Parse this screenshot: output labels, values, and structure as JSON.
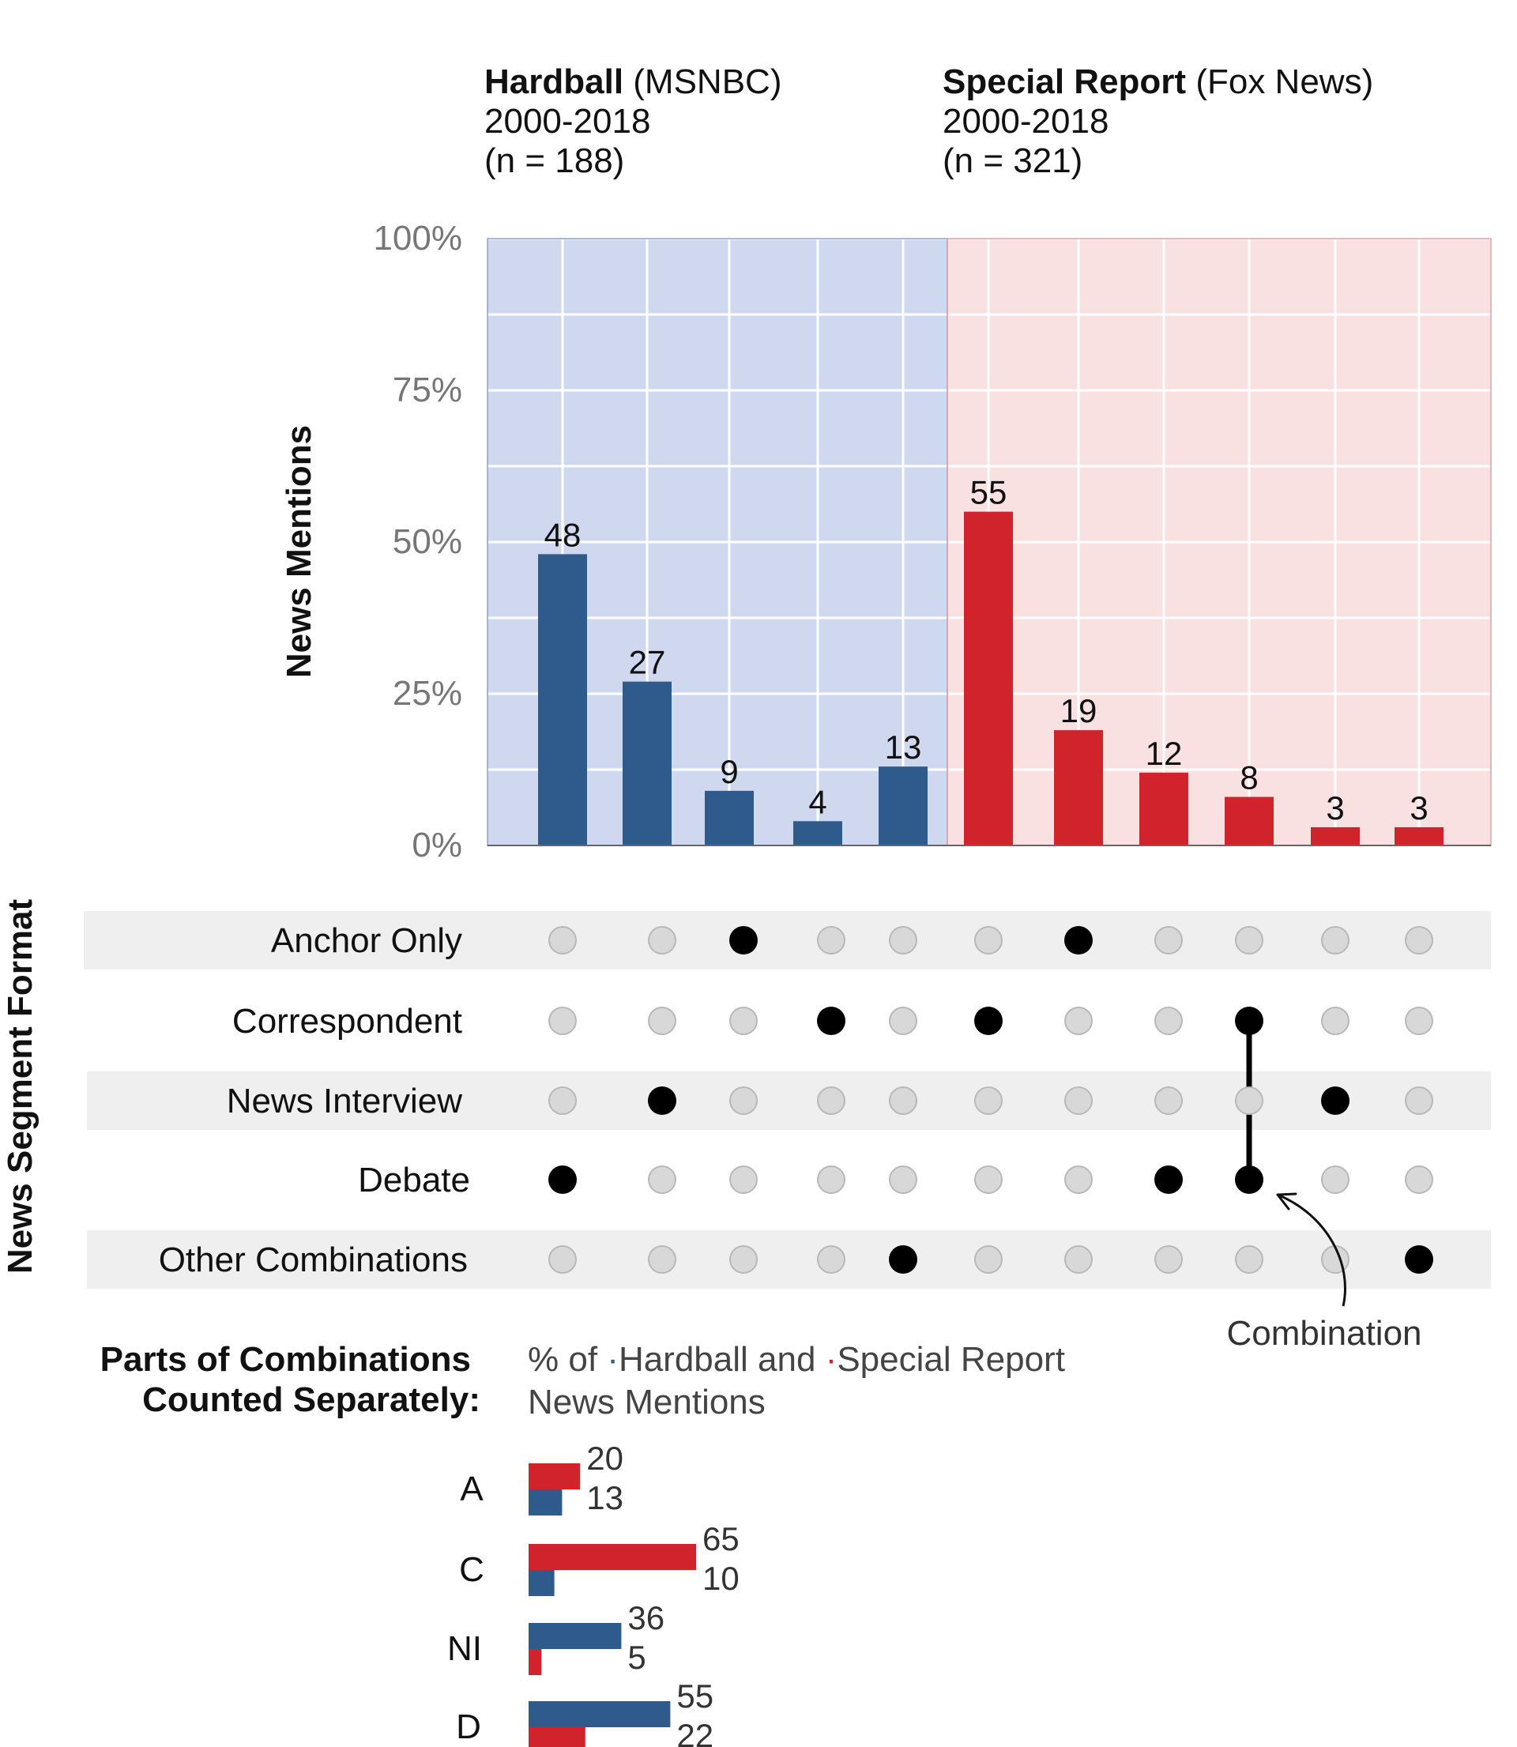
{
  "colors": {
    "hardball": "#2e5a8c",
    "special_report": "#d0232b",
    "hardball_panel": "#cfd8ef",
    "special_report_panel": "#f9e0e1",
    "row_band": "#efefef",
    "dot_off": "#d8d8d8",
    "dot_on": "#000000"
  },
  "panels": [
    {
      "name_bold": "Hardball",
      "name_rest": " (MSNBC)",
      "years": "2000-2018",
      "n": "(n = 188)"
    },
    {
      "name_bold": "Special Report",
      "name_rest": " (Fox News)",
      "years": "2000-2018",
      "n": "(n = 321)"
    }
  ],
  "chart_data": {
    "type": "bar",
    "ylabel": "News Mentions",
    "ylim": [
      0,
      100
    ],
    "yticks": [
      "0%",
      "25%",
      "50%",
      "75%",
      "100%"
    ],
    "series": [
      {
        "name": "Hardball",
        "values": [
          48,
          27,
          9,
          4,
          13
        ]
      },
      {
        "name": "Special Report",
        "values": [
          55,
          19,
          12,
          8,
          3,
          3
        ]
      }
    ],
    "value_labels": {
      "hardball": [
        "48",
        "27",
        "9",
        "4",
        "13"
      ],
      "special_report": [
        "55",
        "19",
        "12",
        "8",
        "3",
        "3"
      ]
    },
    "matrix": {
      "title": "News Segment Format",
      "rows": [
        "Anchor Only",
        "Correspondent",
        "News Interview",
        "Debate",
        "Other Combinations"
      ],
      "columns": [
        [
          3
        ],
        [
          2
        ],
        [
          0
        ],
        [
          1
        ],
        [
          4
        ],
        [
          1
        ],
        [
          0
        ],
        [
          3
        ],
        [
          1,
          3
        ],
        [
          2
        ],
        [
          4
        ]
      ],
      "annotation": "Combination"
    },
    "parts": {
      "title_line1": "Parts of Combinations",
      "title_line2": "Counted Separately:",
      "legend_pre": "% of ",
      "legend_hardball": "Hardball and ",
      "legend_special": "Special Report",
      "legend_line2": "News Mentions",
      "xlim": [
        0,
        65
      ],
      "items": [
        {
          "label": "A",
          "special_report": 20,
          "hardball": 13,
          "top": "special_report"
        },
        {
          "label": "C",
          "special_report": 65,
          "hardball": 10,
          "top": "special_report"
        },
        {
          "label": "NI",
          "special_report": 5,
          "hardball": 36,
          "top": "hardball"
        },
        {
          "label": "D",
          "special_report": 22,
          "hardball": 55,
          "top": "hardball"
        }
      ]
    }
  }
}
